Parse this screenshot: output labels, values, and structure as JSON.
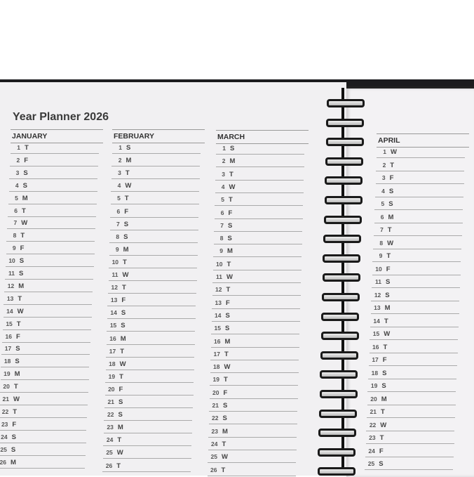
{
  "title": "Year Planner 2026",
  "months": [
    {
      "name": "JANUARY",
      "rows": [
        [
          1,
          "T"
        ],
        [
          2,
          "F"
        ],
        [
          3,
          "S"
        ],
        [
          4,
          "S"
        ],
        [
          5,
          "M"
        ],
        [
          6,
          "T"
        ],
        [
          7,
          "W"
        ],
        [
          8,
          "T"
        ],
        [
          9,
          "F"
        ],
        [
          10,
          "S"
        ],
        [
          11,
          "S"
        ],
        [
          12,
          "M"
        ],
        [
          13,
          "T"
        ],
        [
          14,
          "W"
        ],
        [
          15,
          "T"
        ],
        [
          16,
          "F"
        ],
        [
          17,
          "S"
        ],
        [
          18,
          "S"
        ],
        [
          19,
          "M"
        ],
        [
          20,
          "T"
        ],
        [
          21,
          "W"
        ],
        [
          22,
          "T"
        ],
        [
          23,
          "F"
        ],
        [
          24,
          "S"
        ],
        [
          25,
          "S"
        ],
        [
          26,
          "M"
        ]
      ]
    },
    {
      "name": "FEBRUARY",
      "rows": [
        [
          1,
          "S"
        ],
        [
          2,
          "M"
        ],
        [
          3,
          "T"
        ],
        [
          4,
          "W"
        ],
        [
          5,
          "T"
        ],
        [
          6,
          "F"
        ],
        [
          7,
          "S"
        ],
        [
          8,
          "S"
        ],
        [
          9,
          "M"
        ],
        [
          10,
          "T"
        ],
        [
          11,
          "W"
        ],
        [
          12,
          "T"
        ],
        [
          13,
          "F"
        ],
        [
          14,
          "S"
        ],
        [
          15,
          "S"
        ],
        [
          16,
          "M"
        ],
        [
          17,
          "T"
        ],
        [
          18,
          "W"
        ],
        [
          19,
          "T"
        ],
        [
          20,
          "F"
        ],
        [
          21,
          "S"
        ],
        [
          22,
          "S"
        ],
        [
          23,
          "M"
        ],
        [
          24,
          "T"
        ],
        [
          25,
          "W"
        ],
        [
          26,
          "T"
        ]
      ]
    },
    {
      "name": "MARCH",
      "rows": [
        [
          1,
          "S"
        ],
        [
          2,
          "M"
        ],
        [
          3,
          "T"
        ],
        [
          4,
          "W"
        ],
        [
          5,
          "T"
        ],
        [
          6,
          "F"
        ],
        [
          7,
          "S"
        ],
        [
          8,
          "S"
        ],
        [
          9,
          "M"
        ],
        [
          10,
          "T"
        ],
        [
          11,
          "W"
        ],
        [
          12,
          "T"
        ],
        [
          13,
          "F"
        ],
        [
          14,
          "S"
        ],
        [
          15,
          "S"
        ],
        [
          16,
          "M"
        ],
        [
          17,
          "T"
        ],
        [
          18,
          "W"
        ],
        [
          19,
          "T"
        ],
        [
          20,
          "F"
        ],
        [
          21,
          "S"
        ],
        [
          22,
          "S"
        ],
        [
          23,
          "M"
        ],
        [
          24,
          "T"
        ],
        [
          25,
          "W"
        ],
        [
          26,
          "T"
        ]
      ]
    },
    {
      "name": "APRIL",
      "rows": [
        [
          1,
          "W"
        ],
        [
          2,
          "T"
        ],
        [
          3,
          "F"
        ],
        [
          4,
          "S"
        ],
        [
          5,
          "S"
        ],
        [
          6,
          "M"
        ],
        [
          7,
          "T"
        ],
        [
          8,
          "W"
        ],
        [
          9,
          "T"
        ],
        [
          10,
          "F"
        ],
        [
          11,
          "S"
        ],
        [
          12,
          "S"
        ],
        [
          13,
          "M"
        ],
        [
          14,
          "T"
        ],
        [
          15,
          "W"
        ],
        [
          16,
          "T"
        ],
        [
          17,
          "F"
        ],
        [
          18,
          "S"
        ],
        [
          19,
          "S"
        ],
        [
          20,
          "M"
        ],
        [
          21,
          "T"
        ],
        [
          22,
          "W"
        ],
        [
          23,
          "T"
        ],
        [
          24,
          "F"
        ],
        [
          25,
          "S"
        ]
      ]
    }
  ]
}
